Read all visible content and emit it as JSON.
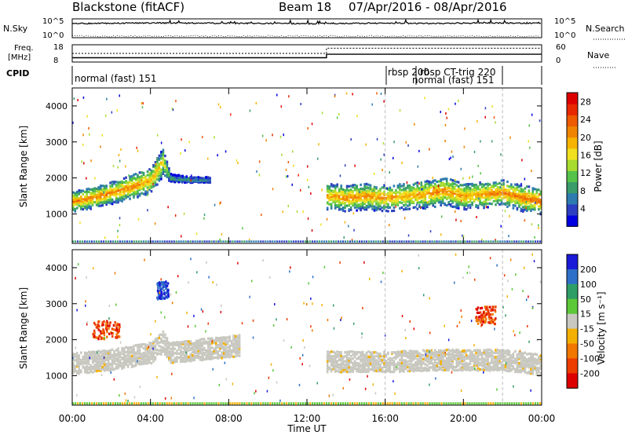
{
  "header": {
    "title": "Blackstone (fitACF)",
    "beam": "Beam 18",
    "date_range": "07/Apr/2016 - 08/Apr/2016"
  },
  "panels": {
    "nsky": {
      "left_label": "N.Sky",
      "right_label": "N.Search",
      "ticks_left": [
        "10^5",
        "10^0"
      ],
      "ticks_right": [
        "10^5",
        "10^0"
      ]
    },
    "freq": {
      "left_label": "Freq.",
      "left_unit": "[MHz]",
      "right_label": "Nave",
      "ticks_left": [
        "18",
        "8"
      ],
      "ticks_right": [
        "60",
        "0"
      ]
    },
    "cpid": {
      "label": "CPID",
      "labels": [
        "normal (fast) 151",
        "rbsp 200",
        "rbsp CT-trig 220",
        "normal (fast) 151"
      ]
    }
  },
  "colors": {
    "power_scale": [
      "#0000e0",
      "#2c3fc0",
      "#2e7bb0",
      "#3a9c6a",
      "#55c24a",
      "#a8dc2e",
      "#f0e020",
      "#f6b400",
      "#f08400",
      "#ee5a00",
      "#e82800",
      "#dd0000"
    ],
    "velocity_scale": [
      "#1a1ad8",
      "#2e70c8",
      "#2f9e66",
      "#5cc838",
      "#c8c8c0",
      "#f4b000",
      "#f07800",
      "#ec3c00",
      "#dd0000"
    ],
    "ground_scatter": "#c8c8c0"
  },
  "chart_data": [
    {
      "type": "heatmap",
      "name": "power",
      "title": "",
      "xlabel": "Time UT",
      "ylabel": "Slant Range [km]",
      "xlim": [
        "00:00",
        "00:00"
      ],
      "ylim": [
        180,
        4500
      ],
      "x_ticks": [
        "00:00",
        "04:00",
        "08:00",
        "12:00",
        "16:00",
        "20:00",
        "00:00"
      ],
      "y_ticks": [
        1000,
        2000,
        3000,
        4000
      ],
      "colorbar": {
        "label": "Power [dB]",
        "ticks": [
          4,
          8,
          12,
          16,
          20,
          24,
          28
        ],
        "range": [
          0,
          30
        ]
      },
      "bands": [
        {
          "x": [
            0,
            1,
            2,
            3,
            4,
            4.6,
            5,
            6,
            7
          ],
          "center_km": [
            1300,
            1400,
            1550,
            1700,
            1900,
            2400,
            1950,
            1900,
            1900
          ],
          "width_km": [
            300,
            300,
            320,
            350,
            380,
            400,
            120,
            80,
            80
          ],
          "power": [
            22,
            22,
            22,
            22,
            20,
            18,
            10,
            8,
            8
          ]
        },
        {
          "x": [
            13,
            14,
            15,
            16,
            17,
            18,
            19,
            20,
            21,
            22,
            23,
            24
          ],
          "center_km": [
            1450,
            1400,
            1450,
            1400,
            1450,
            1500,
            1600,
            1450,
            1500,
            1550,
            1400,
            1300
          ],
          "width_km": [
            380,
            380,
            380,
            380,
            380,
            400,
            400,
            380,
            380,
            380,
            380,
            360
          ],
          "power": [
            20,
            22,
            21,
            21,
            20,
            21,
            22,
            20,
            21,
            22,
            23,
            24
          ]
        }
      ]
    },
    {
      "type": "heatmap",
      "name": "velocity",
      "title": "",
      "xlabel": "Time UT",
      "ylabel": "Slant Range [km]",
      "xlim": [
        "00:00",
        "00:00"
      ],
      "ylim": [
        180,
        4500
      ],
      "x_ticks": [
        "00:00",
        "04:00",
        "08:00",
        "12:00",
        "16:00",
        "20:00",
        "00:00"
      ],
      "y_ticks": [
        1000,
        2000,
        3000,
        4000
      ],
      "colorbar": {
        "label": "Velocity [m s⁻¹]",
        "ticks": [
          200,
          100,
          50,
          15,
          -15,
          -50,
          -100,
          -200
        ],
        "range": [
          -250,
          250
        ]
      },
      "features": [
        {
          "kind": "ground_scatter",
          "x": [
            0,
            2,
            4,
            4.6,
            5,
            8.5
          ],
          "center_km": [
            1400,
            1500,
            1700,
            2000,
            1700,
            1900
          ]
        },
        {
          "kind": "ground_scatter",
          "x": [
            13,
            16,
            19,
            22,
            24
          ],
          "center_km": [
            1450,
            1450,
            1500,
            1500,
            1350
          ]
        },
        {
          "kind": "negative_velocity_patch",
          "x": [
            1.0,
            2.4
          ],
          "center_km": 2300,
          "velocity": -180
        },
        {
          "kind": "positive_velocity_patch",
          "x": [
            4.3,
            4.9
          ],
          "center_km": 3400,
          "velocity": 200
        },
        {
          "kind": "negative_velocity_patch",
          "x": [
            20.6,
            21.6
          ],
          "center_km": 2700,
          "velocity": -200
        }
      ]
    }
  ],
  "nsky_series": {
    "x": [
      0,
      2,
      4,
      6,
      8,
      10,
      12,
      14,
      16,
      18,
      20,
      22,
      24
    ],
    "values": [
      10000,
      12000,
      15000,
      13000,
      12000,
      11000,
      9000,
      11000,
      12000,
      11000,
      12000,
      14000,
      12000
    ]
  },
  "freq_series": {
    "x": [
      0,
      13,
      13,
      24
    ],
    "values": [
      10.5,
      10.5,
      12.5,
      12.5
    ]
  },
  "nave_series": {
    "x": [
      0,
      13,
      13,
      24
    ],
    "values": [
      30,
      30,
      48,
      48
    ]
  }
}
